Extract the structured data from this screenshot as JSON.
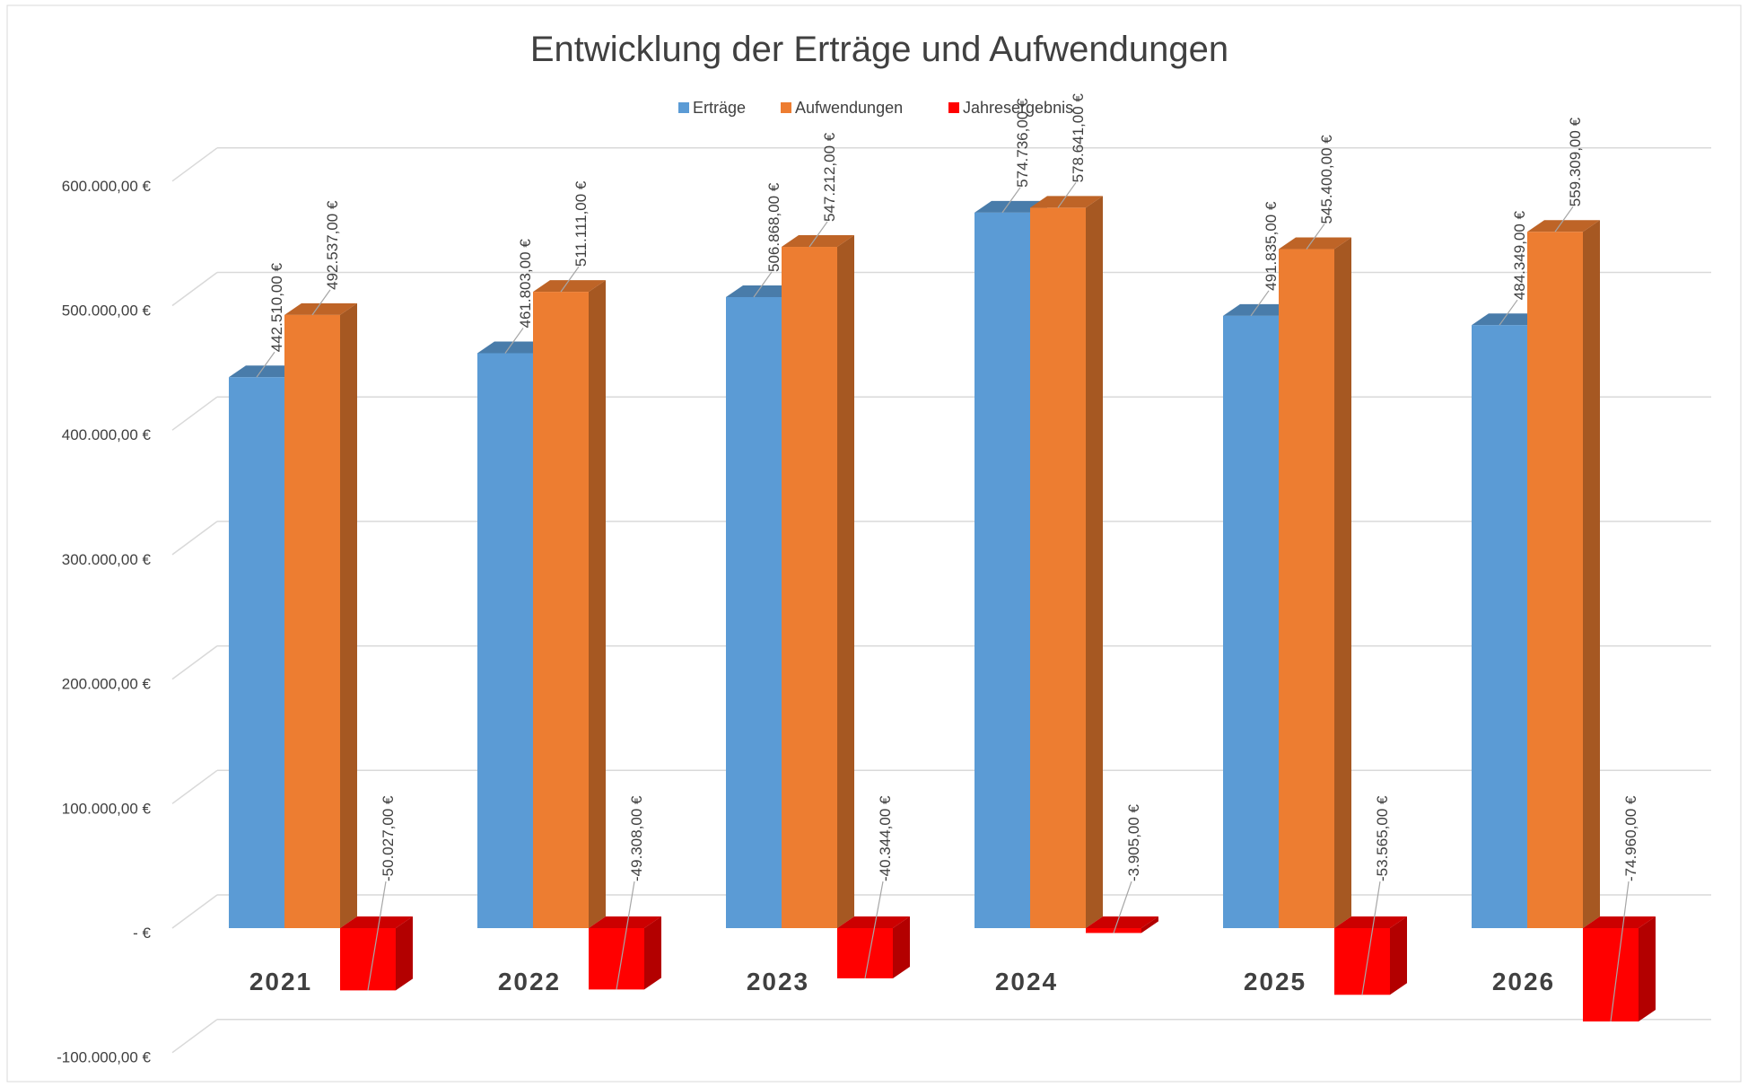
{
  "chart_data": {
    "type": "bar3d",
    "title": "Entwicklung der Erträge und Aufwendungen",
    "categories": [
      "2021",
      "2022",
      "2023",
      "2024",
      "2025",
      "2026"
    ],
    "series": [
      {
        "name": "Erträge",
        "color": "#5b9bd5",
        "values": [
          442510,
          461803,
          506868,
          574736,
          491835,
          484349
        ],
        "value_labels": [
          "442.510,00 €",
          "461.803,00 €",
          "506.868,00 €",
          "574.736,00 €",
          "491.835,00 €",
          "484.349,00 €"
        ]
      },
      {
        "name": "Aufwendungen",
        "color": "#ed7d31",
        "values": [
          492537,
          511111,
          547212,
          578641,
          545400,
          559309
        ],
        "value_labels": [
          "492.537,00 €",
          "511.111,00 €",
          "547.212,00 €",
          "578.641,00 €",
          "545.400,00 €",
          "559.309,00 €"
        ]
      },
      {
        "name": "Jahresergebnis",
        "color": "#ff0000",
        "values": [
          -50027,
          -49308,
          -40344,
          -3905,
          -53565,
          -74960
        ],
        "value_labels": [
          "-50.027,00 €",
          "-49.308,00 €",
          "-40.344,00 €",
          "-3.905,00 €",
          "-53.565,00 €",
          "-74.960,00 €"
        ]
      }
    ],
    "ylim": [
      -100000,
      600000
    ],
    "yticks": [
      {
        "value": -100000,
        "label": "-100.000,00 €"
      },
      {
        "value": 0,
        "label": "-  €"
      },
      {
        "value": 100000,
        "label": "100.000,00 €"
      },
      {
        "value": 200000,
        "label": "200.000,00 €"
      },
      {
        "value": 300000,
        "label": "300.000,00 €"
      },
      {
        "value": 400000,
        "label": "400.000,00 €"
      },
      {
        "value": 500000,
        "label": "500.000,00 €"
      },
      {
        "value": 600000,
        "label": "600.000,00 €"
      }
    ],
    "grid": true,
    "legend": "top"
  }
}
